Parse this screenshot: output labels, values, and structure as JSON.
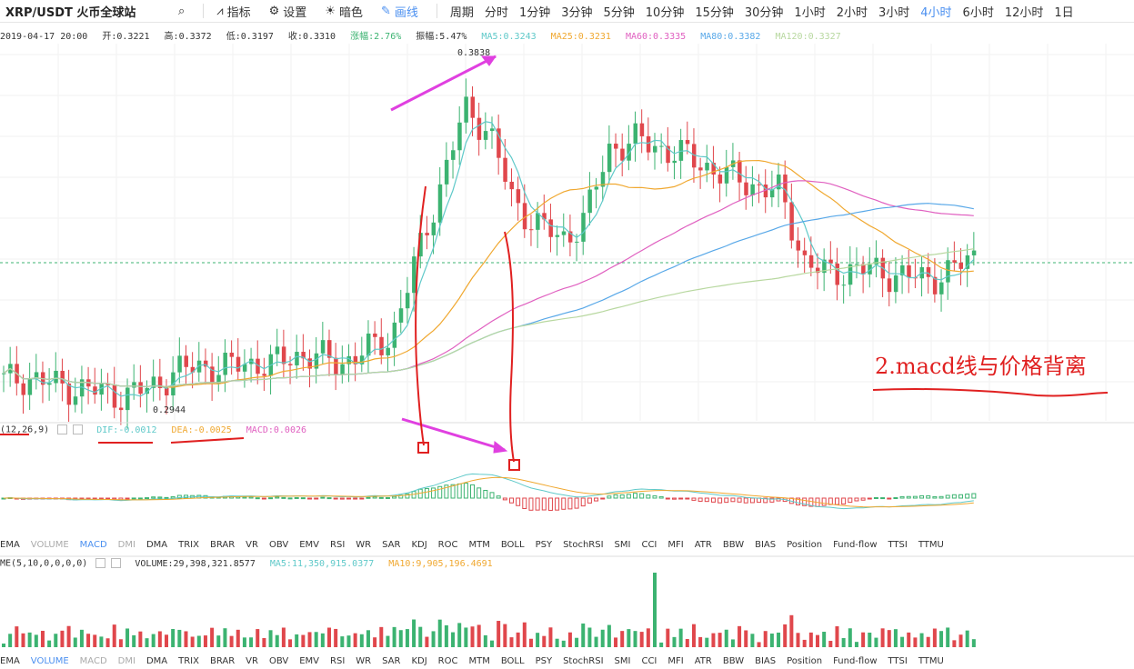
{
  "toolbar": {
    "pair": "XRP/USDT 火币全球站",
    "indicators_label": "指标",
    "settings_label": "设置",
    "theme_label": "暗色",
    "draw_label": "画线",
    "period_label": "周期",
    "periods": [
      "分时",
      "1分钟",
      "3分钟",
      "5分钟",
      "10分钟",
      "15分钟",
      "30分钟",
      "1小时",
      "2小时",
      "3小时",
      "4小时",
      "6小时",
      "12小时",
      "1日"
    ],
    "active_period": "4小时"
  },
  "info": {
    "date": "2019-04-17 20:00",
    "open": "开:0.3221",
    "high": "高:0.3372",
    "low": "低:0.3197",
    "close": "收:0.3310",
    "change": "涨幅:2.76%",
    "amplitude": "振幅:5.47%",
    "ma5": "MA5:0.3243",
    "ma25": "MA25:0.3231",
    "ma60": "MA60:0.3335",
    "ma80": "MA80:0.3382",
    "ma120": "MA120:0.3327"
  },
  "macd_info": {
    "params": "(12,26,9)",
    "dif": "DIF:-0.0012",
    "dea": "DEA:-0.0025",
    "macd": "MACD:0.0026"
  },
  "vol_info": {
    "params": "ME(5,10,0,0,0,0)",
    "volume": "VOLUME:29,398,321.8577",
    "ma5": "MA5:11,350,915.0377",
    "ma10": "MA10:9,905,196.4691"
  },
  "indicator_tabs": [
    "EMA",
    "VOLUME",
    "MACD",
    "DMI",
    "DMA",
    "TRIX",
    "BRAR",
    "VR",
    "OBV",
    "EMV",
    "RSI",
    "WR",
    "SAR",
    "KDJ",
    "ROC",
    "MTM",
    "BOLL",
    "PSY",
    "StochRSI",
    "SMI",
    "CCI",
    "MFI",
    "ATR",
    "BBW",
    "BIAS",
    "Position",
    "Fund-flow",
    "TTSI",
    "TTMU"
  ],
  "indicator_tabs_2": [
    "EMA",
    "VOLUME",
    "MACD",
    "DMI",
    "DMA",
    "TRIX",
    "BRAR",
    "VR",
    "OBV",
    "EMV",
    "RSI",
    "WR",
    "SAR",
    "KDJ",
    "ROC",
    "MTM",
    "BOLL",
    "PSY",
    "StochRSI",
    "SMI",
    "CCI",
    "MFI",
    "ATR",
    "BBW",
    "BIAS",
    "Position",
    "Fund-flow",
    "TTSI",
    "TTMU"
  ],
  "chart_data": {
    "type": "candlestick",
    "high_label": "0.3838",
    "low_label": "0.2944",
    "candles_close": [
      0.298,
      0.299,
      0.297,
      0.296,
      0.295,
      0.294,
      0.296,
      0.3,
      0.302,
      0.301,
      0.303,
      0.302,
      0.305,
      0.304,
      0.303,
      0.306,
      0.31,
      0.33,
      0.35,
      0.37,
      0.365,
      0.345,
      0.34,
      0.335,
      0.342,
      0.36,
      0.362,
      0.36,
      0.358,
      0.355,
      0.352,
      0.35,
      0.348,
      0.33,
      0.326,
      0.328,
      0.327,
      0.326,
      0.325,
      0.327,
      0.331
    ],
    "colors": {
      "up": "#3cb371",
      "down": "#e0474c",
      "ma5": "#5fc9c9",
      "ma25": "#f0a830",
      "ma60": "#e060c0",
      "ma80": "#58a8e8",
      "ma120": "#b8d8a0"
    }
  },
  "annotation": {
    "note": "2.macd线与价格背离"
  }
}
